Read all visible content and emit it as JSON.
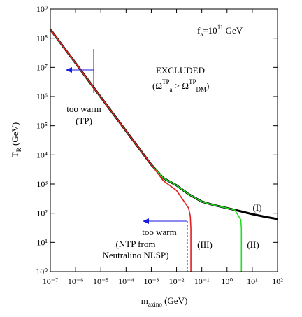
{
  "chart_data": {
    "type": "line",
    "x_label": [
      "m",
      "axino",
      " (GeV)"
    ],
    "y_label": [
      "T",
      "R",
      " (GeV)"
    ],
    "log_x": true,
    "log_y": true,
    "xlim": [
      1e-07,
      100
    ],
    "ylim": [
      1,
      1000000000
    ],
    "xticks": [
      {
        "value": 1e-07,
        "label": "10⁻⁷"
      },
      {
        "value": 1e-06,
        "label": "10⁻⁶"
      },
      {
        "value": 1e-05,
        "label": "10⁻⁵"
      },
      {
        "value": 0.0001,
        "label": "10⁻⁴"
      },
      {
        "value": 0.001,
        "label": "10⁻³"
      },
      {
        "value": 0.01,
        "label": "10⁻²"
      },
      {
        "value": 0.1,
        "label": "10⁻¹"
      },
      {
        "value": 1,
        "label": "10⁰"
      },
      {
        "value": 10,
        "label": "10¹"
      },
      {
        "value": 100,
        "label": "10²"
      }
    ],
    "yticks": [
      {
        "value": 1,
        "label": "10⁰"
      },
      {
        "value": 10,
        "label": "10¹"
      },
      {
        "value": 100,
        "label": "10²"
      },
      {
        "value": 1000,
        "label": "10³"
      },
      {
        "value": 10000,
        "label": "10⁴"
      },
      {
        "value": 100000,
        "label": "10⁵"
      },
      {
        "value": 1000000,
        "label": "10⁶"
      },
      {
        "value": 10000000,
        "label": "10⁷"
      },
      {
        "value": 100000000,
        "label": "10⁸"
      },
      {
        "value": 1000000000,
        "label": "10⁹"
      }
    ],
    "series": [
      {
        "name": "(I)",
        "color": "#000000",
        "x": [
          1e-07,
          1e-06,
          1e-05,
          0.0001,
          0.001,
          0.003,
          0.01,
          0.03,
          0.1,
          0.3,
          1,
          3,
          10,
          30,
          100
        ],
        "values": [
          200000000,
          14000000,
          950000,
          66000,
          4600,
          1600,
          900,
          450,
          250,
          190,
          150,
          120,
          93,
          76,
          63
        ]
      },
      {
        "name": "(II)",
        "color": "#22dd22",
        "x": [
          1e-07,
          1e-06,
          1e-05,
          0.0001,
          0.001,
          0.003,
          0.01,
          0.03,
          0.1,
          0.3,
          1,
          2,
          3,
          3.5,
          3.7,
          3.7
        ],
        "values": [
          200000000,
          14000000,
          950000,
          66000,
          4600,
          1600,
          900,
          450,
          250,
          190,
          150,
          130,
          75,
          60,
          30,
          1
        ]
      },
      {
        "name": "(III)",
        "color": "#e02020",
        "x": [
          1e-07,
          1e-06,
          1e-05,
          0.0001,
          0.001,
          0.003,
          0.01,
          0.02,
          0.03,
          0.035,
          0.037,
          0.037
        ],
        "values": [
          200000000,
          14000000,
          950000,
          66000,
          4600,
          1300,
          600,
          250,
          150,
          80,
          30,
          1
        ]
      }
    ],
    "annotations": {
      "fa": [
        "f",
        "a",
        "=10",
        "11",
        " GeV"
      ],
      "excluded": "EXCLUDED",
      "omega": [
        "(Ω",
        "TP",
        "a",
        " > Ω",
        "TP",
        "DM",
        ")"
      ],
      "too_warm_tp": [
        "too warm",
        "(TP)"
      ],
      "too_warm_ntp": [
        "too warm",
        "(NTP from",
        "Neutralino NLSP)"
      ]
    }
  }
}
